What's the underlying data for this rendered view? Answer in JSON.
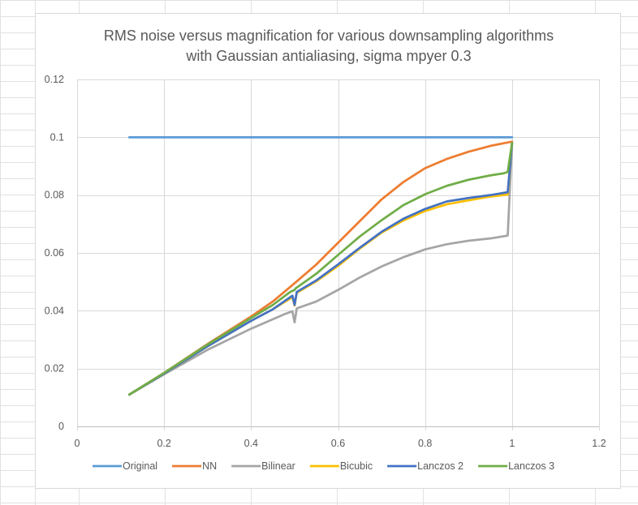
{
  "chart_data": {
    "type": "line",
    "title": "RMS noise versus magnification for various downsampling algorithms",
    "subtitle": "with Gaussian antialiasing, sigma mpyer 0.3",
    "xlabel": "",
    "ylabel": "",
    "xlim": [
      0,
      1.2
    ],
    "ylim": [
      0,
      0.12
    ],
    "x_ticks": [
      "0",
      "0.2",
      "0.4",
      "0.6",
      "0.8",
      "1",
      "1.2"
    ],
    "y_ticks": [
      "0",
      "0.02",
      "0.04",
      "0.06",
      "0.08",
      "0.1",
      "0.12"
    ],
    "grid": true,
    "legend_position": "bottom",
    "series": [
      {
        "name": "Original",
        "color": "#5b9bd5",
        "points": [
          [
            0.12,
            0.1
          ],
          [
            1.0,
            0.1
          ]
        ]
      },
      {
        "name": "NN",
        "color": "#ed7d31",
        "points": [
          [
            0.12,
            0.011
          ],
          [
            0.2,
            0.0185
          ],
          [
            0.3,
            0.0285
          ],
          [
            0.4,
            0.038
          ],
          [
            0.45,
            0.0432
          ],
          [
            0.5,
            0.0495
          ],
          [
            0.55,
            0.056
          ],
          [
            0.6,
            0.0635
          ],
          [
            0.65,
            0.071
          ],
          [
            0.7,
            0.0785
          ],
          [
            0.75,
            0.0845
          ],
          [
            0.8,
            0.0893
          ],
          [
            0.85,
            0.0925
          ],
          [
            0.9,
            0.095
          ],
          [
            0.95,
            0.097
          ],
          [
            1.0,
            0.0985
          ]
        ]
      },
      {
        "name": "Bilinear",
        "color": "#a5a5a5",
        "points": [
          [
            0.12,
            0.011
          ],
          [
            0.2,
            0.018
          ],
          [
            0.3,
            0.0265
          ],
          [
            0.4,
            0.0338
          ],
          [
            0.48,
            0.039
          ],
          [
            0.495,
            0.0398
          ],
          [
            0.5,
            0.036
          ],
          [
            0.505,
            0.0408
          ],
          [
            0.55,
            0.0432
          ],
          [
            0.6,
            0.0472
          ],
          [
            0.65,
            0.0515
          ],
          [
            0.7,
            0.0553
          ],
          [
            0.75,
            0.0585
          ],
          [
            0.8,
            0.0612
          ],
          [
            0.85,
            0.063
          ],
          [
            0.9,
            0.0642
          ],
          [
            0.95,
            0.065
          ],
          [
            0.99,
            0.066
          ],
          [
            1.0,
            0.098
          ]
        ]
      },
      {
        "name": "Bicubic",
        "color": "#ffc000",
        "points": [
          [
            0.12,
            0.011
          ],
          [
            0.2,
            0.0183
          ],
          [
            0.3,
            0.0277
          ],
          [
            0.4,
            0.0365
          ],
          [
            0.45,
            0.0405
          ],
          [
            0.495,
            0.0447
          ],
          [
            0.5,
            0.0418
          ],
          [
            0.505,
            0.0462
          ],
          [
            0.55,
            0.0502
          ],
          [
            0.6,
            0.0555
          ],
          [
            0.65,
            0.0615
          ],
          [
            0.7,
            0.067
          ],
          [
            0.75,
            0.0712
          ],
          [
            0.8,
            0.0745
          ],
          [
            0.85,
            0.0768
          ],
          [
            0.9,
            0.0782
          ],
          [
            0.95,
            0.0795
          ],
          [
            0.99,
            0.0802
          ],
          [
            1.0,
            0.098
          ]
        ]
      },
      {
        "name": "Lanczos 2",
        "color": "#4472c4",
        "points": [
          [
            0.12,
            0.011
          ],
          [
            0.2,
            0.0183
          ],
          [
            0.3,
            0.0277
          ],
          [
            0.4,
            0.0365
          ],
          [
            0.45,
            0.0405
          ],
          [
            0.495,
            0.0452
          ],
          [
            0.5,
            0.042
          ],
          [
            0.505,
            0.0465
          ],
          [
            0.55,
            0.0505
          ],
          [
            0.6,
            0.056
          ],
          [
            0.65,
            0.0618
          ],
          [
            0.7,
            0.0673
          ],
          [
            0.75,
            0.0718
          ],
          [
            0.8,
            0.0752
          ],
          [
            0.85,
            0.0778
          ],
          [
            0.9,
            0.079
          ],
          [
            0.95,
            0.08
          ],
          [
            0.99,
            0.081
          ],
          [
            1.0,
            0.098
          ]
        ]
      },
      {
        "name": "Lanczos 3",
        "color": "#70ad47",
        "points": [
          [
            0.12,
            0.011
          ],
          [
            0.2,
            0.0185
          ],
          [
            0.3,
            0.0283
          ],
          [
            0.4,
            0.0375
          ],
          [
            0.45,
            0.042
          ],
          [
            0.49,
            0.0465
          ],
          [
            0.5,
            0.0472
          ],
          [
            0.503,
            0.0478
          ],
          [
            0.55,
            0.0528
          ],
          [
            0.6,
            0.0593
          ],
          [
            0.65,
            0.0657
          ],
          [
            0.7,
            0.0713
          ],
          [
            0.75,
            0.0765
          ],
          [
            0.8,
            0.0803
          ],
          [
            0.85,
            0.0832
          ],
          [
            0.9,
            0.0853
          ],
          [
            0.95,
            0.0868
          ],
          [
            0.98,
            0.0875
          ],
          [
            0.99,
            0.088
          ],
          [
            1.0,
            0.098
          ]
        ]
      }
    ]
  }
}
